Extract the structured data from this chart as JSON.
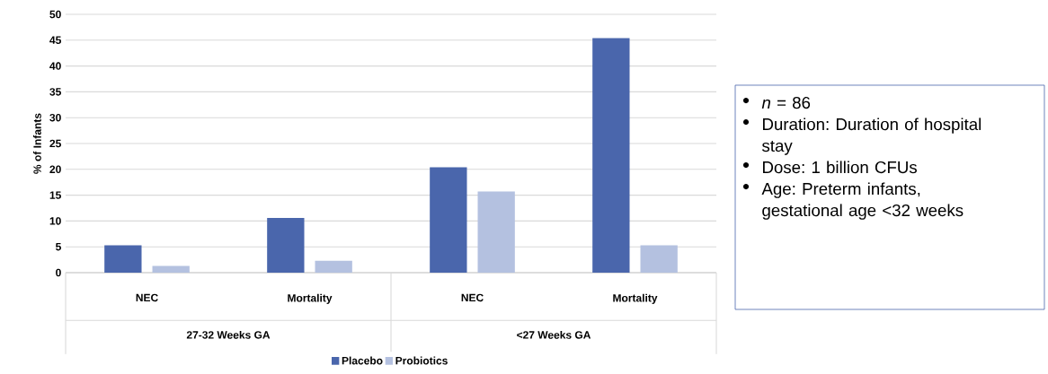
{
  "chart_data": {
    "type": "bar",
    "ylabel": "% of Infants",
    "categories": [
      "NEC",
      "Mortality",
      "NEC",
      "Mortality"
    ],
    "series": [
      {
        "name": "Placebo",
        "color": "#4a66ac",
        "values": [
          5.3,
          10.6,
          20.4,
          45.4
        ]
      },
      {
        "name": "Probiotics",
        "color": "#b4c1e0",
        "values": [
          1.3,
          2.3,
          15.7,
          5.3
        ]
      }
    ],
    "ylim": [
      0,
      50
    ],
    "yticks": [
      0,
      5,
      10,
      15,
      20,
      25,
      30,
      35,
      40,
      45,
      50
    ],
    "grid": "y",
    "legend": "bottom",
    "annotations": [
      "27-32 Weeks GA",
      "<27 Weeks GA",
      "*n* = 86",
      "Duration: Duration of hospital stay",
      "Dose: 1 billion CFUs",
      "Age: Preterm infants, gestational age <32 weeks"
    ]
  }
}
